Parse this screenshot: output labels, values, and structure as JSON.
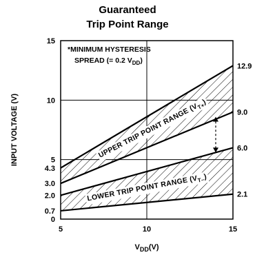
{
  "chart_data": {
    "type": "area",
    "title": "Guaranteed",
    "subtitle": "Trip Point Range",
    "xlabel": "V",
    "xlabel_sub": "DD",
    "xlabel_unit": "(V)",
    "ylabel": "INPUT VOLTAGE (V)",
    "xlim": [
      5,
      15
    ],
    "ylim": [
      0,
      15
    ],
    "x_ticks": [
      "5",
      "10",
      "15"
    ],
    "x_tick_values": [
      5,
      10,
      15
    ],
    "y_ticks": [
      "0",
      "0.7",
      "2.0",
      "3.0",
      "4.3",
      "5",
      "10",
      "15"
    ],
    "y_tick_values": [
      0,
      0.7,
      2.0,
      3.0,
      4.3,
      5,
      10,
      15
    ],
    "grid_x": [
      10
    ],
    "grid_y": [
      5,
      10
    ],
    "right_labels": [
      "12.9",
      "9.0",
      "6.0",
      "2.1"
    ],
    "right_label_values": [
      12.9,
      9.0,
      6.0,
      2.1
    ],
    "note_line1": "*MINIMUM HYSTERESIS",
    "note_line2_prefix": "SPREAD (= 0.2 V",
    "note_line2_sub": "DD",
    "note_line2_suffix": ")",
    "series": [
      {
        "name": "UPPER TRIP POINT RANGE (V",
        "label_sub": "T+",
        "label_suffix": ")",
        "x": [
          5,
          15
        ],
        "upper": [
          4.3,
          12.9
        ],
        "lower": [
          3.0,
          9.0
        ]
      },
      {
        "name": "LOWER TRIP POINT RANGE (V",
        "label_sub": "T–",
        "label_suffix": ")",
        "x": [
          5,
          15
        ],
        "upper": [
          2.0,
          6.0
        ],
        "lower": [
          0.7,
          2.1
        ]
      }
    ],
    "hysteresis_arrow": {
      "x": 14,
      "from": 5.6,
      "to": 8.6
    }
  }
}
